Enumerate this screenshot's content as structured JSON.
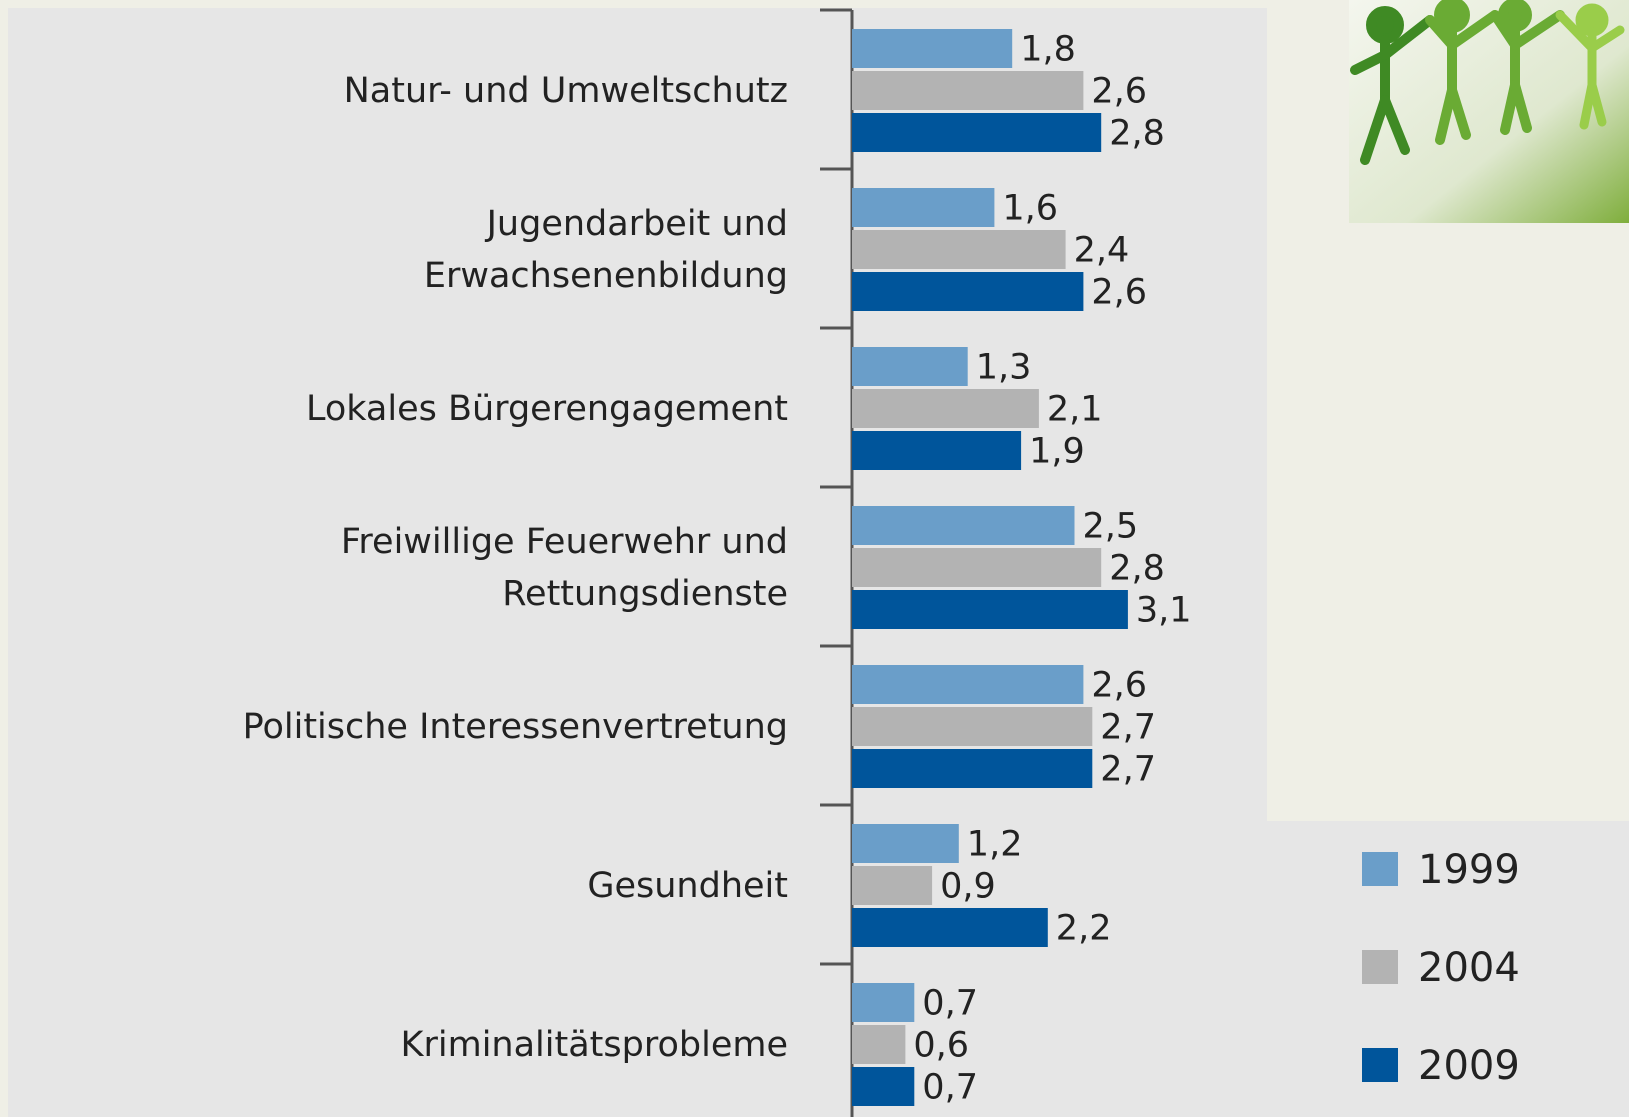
{
  "chart_data": {
    "type": "bar",
    "orientation": "horizontal",
    "categories": [
      "Natur- und Umweltschutz",
      "Jugendarbeit und\nErwachsenenbildung",
      "Lokales Bürgerengagement",
      "Freiwillige Feuerwehr und\nRettungsdienste",
      "Politische Interessenvertretung",
      "Gesundheit",
      "Kriminalitätsprobleme"
    ],
    "series": [
      {
        "name": "1999",
        "color": "#6a9ec9",
        "values": [
          1.8,
          1.6,
          1.3,
          2.5,
          2.6,
          1.2,
          0.7
        ],
        "value_labels": [
          "1,8",
          "1,6",
          "1,3",
          "2,5",
          "2,6",
          "1,2",
          "0,7"
        ]
      },
      {
        "name": "2004",
        "color": "#b3b3b3",
        "values": [
          2.6,
          2.4,
          2.1,
          2.8,
          2.7,
          0.9,
          0.6
        ],
        "value_labels": [
          "2,6",
          "2,4",
          "2,1",
          "2,8",
          "2,7",
          "0,9",
          "0,6"
        ]
      },
      {
        "name": "2009",
        "color": "#00559b",
        "values": [
          2.8,
          2.6,
          1.9,
          3.1,
          2.7,
          2.2,
          0.7
        ],
        "value_labels": [
          "2,8",
          "2,6",
          "1,9",
          "3,1",
          "2,7",
          "2,2",
          "0,7"
        ]
      }
    ]
  }
}
